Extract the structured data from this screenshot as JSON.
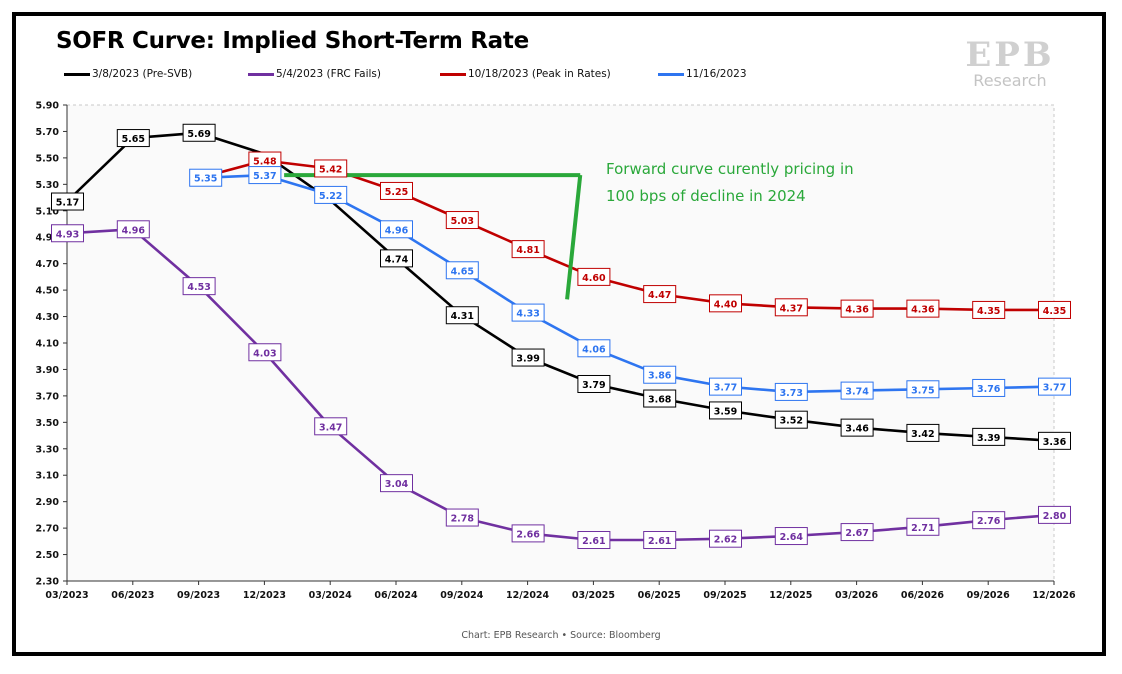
{
  "chart_data": {
    "type": "line",
    "title": "SOFR Curve: Implied Short-Term Rate",
    "xlabel": "",
    "ylabel": "",
    "ylim": [
      2.3,
      5.9
    ],
    "yticks": [
      "5.90",
      "5.70",
      "5.50",
      "5.30",
      "5.10",
      "4.90",
      "4.70",
      "4.50",
      "4.30",
      "4.10",
      "3.90",
      "3.70",
      "3.50",
      "3.30",
      "3.10",
      "2.90",
      "2.70",
      "2.50",
      "2.30"
    ],
    "xticks": [
      "03/2023",
      "06/2023",
      "09/2023",
      "12/2023",
      "03/2024",
      "06/2024",
      "09/2024",
      "12/2024",
      "03/2025",
      "06/2025",
      "09/2025",
      "12/2025",
      "03/2026",
      "06/2026",
      "09/2026",
      "12/2026"
    ],
    "grid": false,
    "legend_position": "top",
    "series": [
      {
        "name": "3/8/2023 (Pre-SVB)",
        "color": "#000000",
        "points": [
          [
            0,
            5.17
          ],
          [
            1,
            5.65
          ],
          [
            2,
            5.69
          ],
          [
            3,
            5.53
          ],
          [
            4,
            5.18
          ],
          [
            5,
            4.74
          ],
          [
            6,
            4.31
          ],
          [
            7,
            3.99
          ],
          [
            8,
            3.79
          ],
          [
            9,
            3.68
          ],
          [
            10,
            3.59
          ],
          [
            11,
            3.52
          ],
          [
            12,
            3.46
          ],
          [
            13,
            3.42
          ],
          [
            14,
            3.39
          ],
          [
            15,
            3.36
          ]
        ],
        "labels": [
          [
            0,
            "5.17"
          ],
          [
            1,
            "5.65"
          ],
          [
            2,
            "5.69"
          ],
          [
            5,
            "4.74"
          ],
          [
            6,
            "4.31"
          ],
          [
            7,
            "3.99"
          ],
          [
            8,
            "3.79"
          ],
          [
            9,
            "3.68"
          ],
          [
            10,
            "3.59"
          ],
          [
            11,
            "3.52"
          ],
          [
            12,
            "3.46"
          ],
          [
            13,
            "3.42"
          ],
          [
            14,
            "3.39"
          ],
          [
            15,
            "3.36"
          ]
        ]
      },
      {
        "name": "5/4/2023 (FRC Fails)",
        "color": "#7030a0",
        "points": [
          [
            0,
            4.93
          ],
          [
            1,
            4.96
          ],
          [
            2,
            4.53
          ],
          [
            3,
            4.03
          ],
          [
            4,
            3.47
          ],
          [
            5,
            3.04
          ],
          [
            6,
            2.78
          ],
          [
            7,
            2.66
          ],
          [
            8,
            2.61
          ],
          [
            9,
            2.61
          ],
          [
            10,
            2.62
          ],
          [
            11,
            2.64
          ],
          [
            12,
            2.67
          ],
          [
            13,
            2.71
          ],
          [
            14,
            2.76
          ],
          [
            15,
            2.8
          ]
        ],
        "labels": [
          [
            0,
            "4.93"
          ],
          [
            1,
            "4.96"
          ],
          [
            2,
            "4.53"
          ],
          [
            3,
            "4.03"
          ],
          [
            4,
            "3.47"
          ],
          [
            5,
            "3.04"
          ],
          [
            6,
            "2.78"
          ],
          [
            7,
            "2.66"
          ],
          [
            8,
            "2.61"
          ],
          [
            9,
            "2.61"
          ],
          [
            10,
            "2.62"
          ],
          [
            11,
            "2.64"
          ],
          [
            12,
            "2.67"
          ],
          [
            13,
            "2.71"
          ],
          [
            14,
            "2.76"
          ],
          [
            15,
            "2.80"
          ]
        ]
      },
      {
        "name": "10/18/2023 (Peak in Rates)",
        "color": "#c00000",
        "points": [
          [
            2.1,
            5.36
          ],
          [
            3,
            5.48
          ],
          [
            4,
            5.42
          ],
          [
            5,
            5.25
          ],
          [
            6,
            5.03
          ],
          [
            7,
            4.81
          ],
          [
            8,
            4.6
          ],
          [
            9,
            4.47
          ],
          [
            10,
            4.4
          ],
          [
            11,
            4.37
          ],
          [
            12,
            4.36
          ],
          [
            13,
            4.36
          ],
          [
            14,
            4.35
          ],
          [
            15,
            4.35
          ]
        ],
        "labels": [
          [
            3,
            "5.48"
          ],
          [
            4,
            "5.42"
          ],
          [
            5,
            "5.25"
          ],
          [
            6,
            "5.03"
          ],
          [
            7,
            "4.81"
          ],
          [
            8,
            "4.60"
          ],
          [
            9,
            "4.47"
          ],
          [
            10,
            "4.40"
          ],
          [
            11,
            "4.37"
          ],
          [
            12,
            "4.36"
          ],
          [
            13,
            "4.36"
          ],
          [
            14,
            "4.35"
          ],
          [
            15,
            "4.35"
          ]
        ]
      },
      {
        "name": "11/16/2023",
        "color": "#2e75f0",
        "points": [
          [
            2.1,
            5.35
          ],
          [
            3,
            5.37
          ],
          [
            4,
            5.22
          ],
          [
            5,
            4.96
          ],
          [
            6,
            4.65
          ],
          [
            7,
            4.33
          ],
          [
            8,
            4.06
          ],
          [
            9,
            3.86
          ],
          [
            10,
            3.77
          ],
          [
            11,
            3.73
          ],
          [
            12,
            3.74
          ],
          [
            13,
            3.75
          ],
          [
            14,
            3.76
          ],
          [
            15,
            3.77
          ]
        ],
        "labels": [
          [
            2.1,
            "5.35"
          ],
          [
            3,
            "5.37"
          ],
          [
            4,
            "5.22"
          ],
          [
            5,
            "4.96"
          ],
          [
            6,
            "4.65"
          ],
          [
            7,
            "4.33"
          ],
          [
            8,
            "4.06"
          ],
          [
            9,
            "3.86"
          ],
          [
            10,
            "3.77"
          ],
          [
            11,
            "3.73"
          ],
          [
            12,
            "3.74"
          ],
          [
            13,
            "3.75"
          ],
          [
            14,
            "3.76"
          ],
          [
            15,
            "3.77"
          ]
        ]
      }
    ],
    "annotation": {
      "text_line1": "Forward curve curently pricing in",
      "text_line2": "100 bps of decline in 2024",
      "color": "#2aa83a",
      "from_point": [
        3.3,
        5.37
      ],
      "to_point": [
        7.6,
        4.43
      ],
      "corner_x": 7.8
    }
  },
  "source_text": "Chart: EPB Research  •  Source: Bloomberg",
  "logo": {
    "mark": "EPB",
    "subtitle": "Research"
  }
}
